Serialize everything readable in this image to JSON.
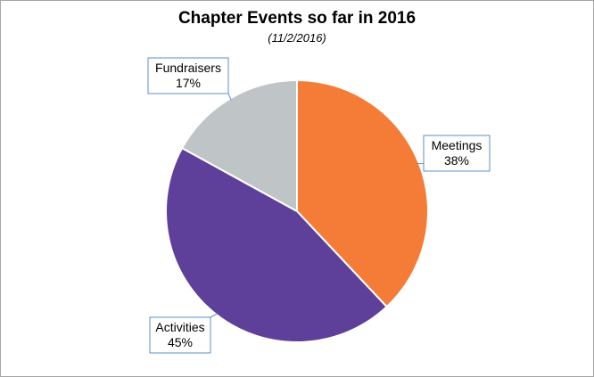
{
  "chart_data": {
    "type": "pie",
    "title": "Chapter Events so far in 2016",
    "subtitle": "(11/2/2016)",
    "start_angle_deg": 0,
    "direction": "clockwise",
    "slices": [
      {
        "label": "Meetings",
        "value": 38,
        "value_label": "38%",
        "color": "#f47c37"
      },
      {
        "label": "Activities",
        "value": 45,
        "value_label": "45%",
        "color": "#5e3f99"
      },
      {
        "label": "Fundraisers",
        "value": 17,
        "value_label": "17%",
        "color": "#bfc4c7"
      }
    ],
    "legend": "none",
    "data_labels": "callouts"
  },
  "colors": {
    "background": "#ffffff",
    "border": "#a6a6a6",
    "callout_border": "#5b8fc9"
  }
}
